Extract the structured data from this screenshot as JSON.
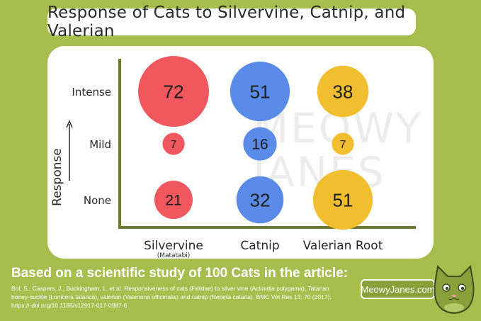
{
  "title": "Response of Cats to Silvervine, Catnip, and Valerian",
  "watermark": "MEOWY JANES",
  "chart_data": {
    "type": "bubble",
    "title": "Response of Cats to Silvervine, Catnip, and Valerian",
    "ylabel": "Response",
    "xlabel": "",
    "x_categories": [
      {
        "label": "Silvervine",
        "sublabel": "(Matatabi)"
      },
      {
        "label": "Catnip",
        "sublabel": ""
      },
      {
        "label": "Valerian Root",
        "sublabel": ""
      }
    ],
    "y_categories": [
      "Intense",
      "Mild",
      "None"
    ],
    "series": [
      {
        "name": "Silvervine",
        "color": "#f0575e",
        "values": {
          "Intense": 72,
          "Mild": 7,
          "None": 21
        }
      },
      {
        "name": "Catnip",
        "color": "#5a8be8",
        "values": {
          "Intense": 51,
          "Mild": 16,
          "None": 32
        }
      },
      {
        "name": "Valerian Root",
        "color": "#f0be2e",
        "values": {
          "Intense": 38,
          "Mild": 7,
          "None": 51
        }
      }
    ],
    "axis_color": "#6b7a2c",
    "grid": false
  },
  "footer": {
    "heading": "Based on a scientific study of 100 Cats in the article:",
    "citation": "Bol, S., Caspers, J., Buckingham, L. et al. Responsiveness of cats (Felidae) to silver vine (Actinidia polygama), Tatarian honey-suckle (Lonicera tatarica), valerian (Valeriana officinalis) and catnip (Nepeta cataria). BMC Vet Res 13, 70 (2017). https://-doi.org/10.1186/s12917-017-0987-6"
  },
  "brand": {
    "label": "MeowyJanes.com",
    "logo_icon": "cat-logo-icon"
  },
  "colors": {
    "background": "#a8bd4e",
    "panel": "#ffffff"
  }
}
